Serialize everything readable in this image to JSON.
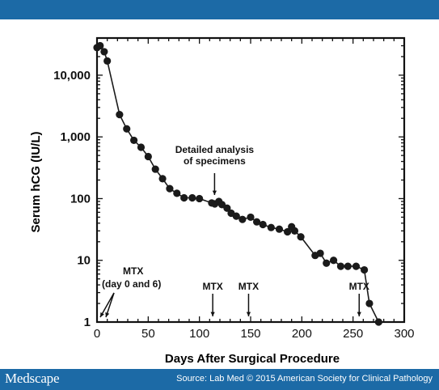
{
  "header": {
    "accent_color": "#1c6aa6"
  },
  "footer": {
    "brand": "Medscape",
    "source": "Source: Lab Med © 2015 American Society for Clinical Pathology"
  },
  "chart_data": {
    "type": "line",
    "title": "",
    "xlabel": "Days After Surgical Procedure",
    "ylabel": "Serum hCG (IU/L)",
    "xlim": [
      0,
      300
    ],
    "ylim": [
      1,
      40000
    ],
    "y_scale": "log",
    "grid": false,
    "x_ticks": [
      0,
      50,
      100,
      150,
      200,
      250,
      300
    ],
    "y_ticks": [
      {
        "value": 1,
        "label": "1"
      },
      {
        "value": 10,
        "label": "10"
      },
      {
        "value": 100,
        "label": "100"
      },
      {
        "value": 1000,
        "label": "1,000"
      },
      {
        "value": 10000,
        "label": "10,000"
      }
    ],
    "series": [
      {
        "color": "#1a1a1a",
        "x": [
          0,
          3,
          7,
          10,
          22,
          29,
          36,
          43,
          50,
          57,
          64,
          71,
          78,
          85,
          93,
          100,
          112,
          115,
          119,
          122,
          127,
          131,
          136,
          142,
          150,
          156,
          162,
          170,
          178,
          186,
          190,
          193,
          199,
          213,
          218,
          224,
          231,
          238,
          245,
          253,
          261,
          266,
          275
        ],
        "y": [
          28000,
          30000,
          24000,
          17000,
          2300,
          1350,
          880,
          680,
          480,
          300,
          210,
          145,
          122,
          103,
          103,
          100,
          85,
          82,
          90,
          80,
          70,
          58,
          52,
          46,
          50,
          42,
          38,
          34,
          32,
          29,
          35,
          30,
          24,
          12,
          13,
          9,
          10,
          8,
          8,
          8,
          7,
          2,
          1
        ]
      }
    ],
    "annotations": [
      {
        "text_lines": [
          "Detailed analysis",
          "of specimens"
        ],
        "x": 114,
        "y": 100
      },
      {
        "text_lines": [
          "MTX",
          "(day 0 and 6)"
        ],
        "x": 3,
        "y": 1
      },
      {
        "text_lines": [
          "MTX"
        ],
        "x": 113,
        "y": 1
      },
      {
        "text_lines": [
          "MTX"
        ],
        "x": 148,
        "y": 1
      },
      {
        "text_lines": [
          "MTX"
        ],
        "x": 256,
        "y": 1
      }
    ]
  }
}
